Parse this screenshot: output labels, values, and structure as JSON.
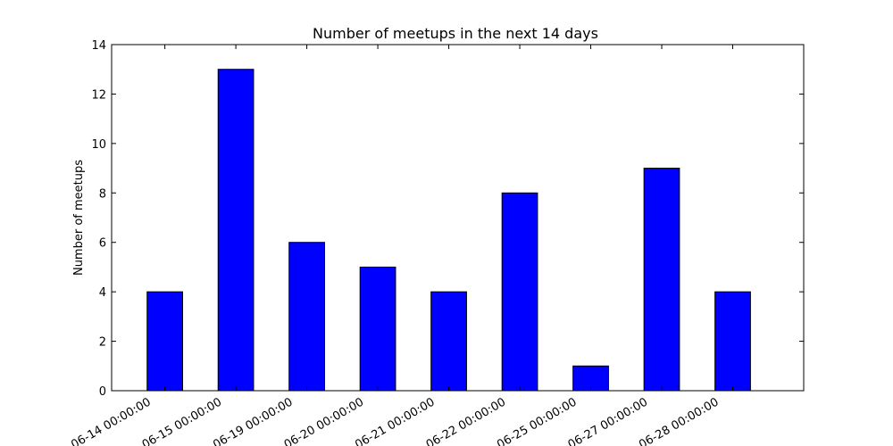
{
  "chart_data": {
    "type": "bar",
    "title": "Number of meetups in the next 14 days",
    "xlabel": "",
    "ylabel": "Number of meetups",
    "categories": [
      "06-14 00:00:00",
      "06-15 00:00:00",
      "06-19 00:00:00",
      "06-20 00:00:00",
      "06-21 00:00:00",
      "06-22 00:00:00",
      "06-25 00:00:00",
      "06-27 00:00:00",
      "06-28 00:00:00"
    ],
    "values": [
      4,
      13,
      6,
      5,
      4,
      8,
      1,
      9,
      4
    ],
    "ylim": [
      0,
      14
    ],
    "yticks": [
      "0",
      "2",
      "4",
      "6",
      "8",
      "10",
      "12",
      "14"
    ],
    "grid": false,
    "legend": "none",
    "bar_color": "#0000ff",
    "edge_color": "#000000"
  }
}
